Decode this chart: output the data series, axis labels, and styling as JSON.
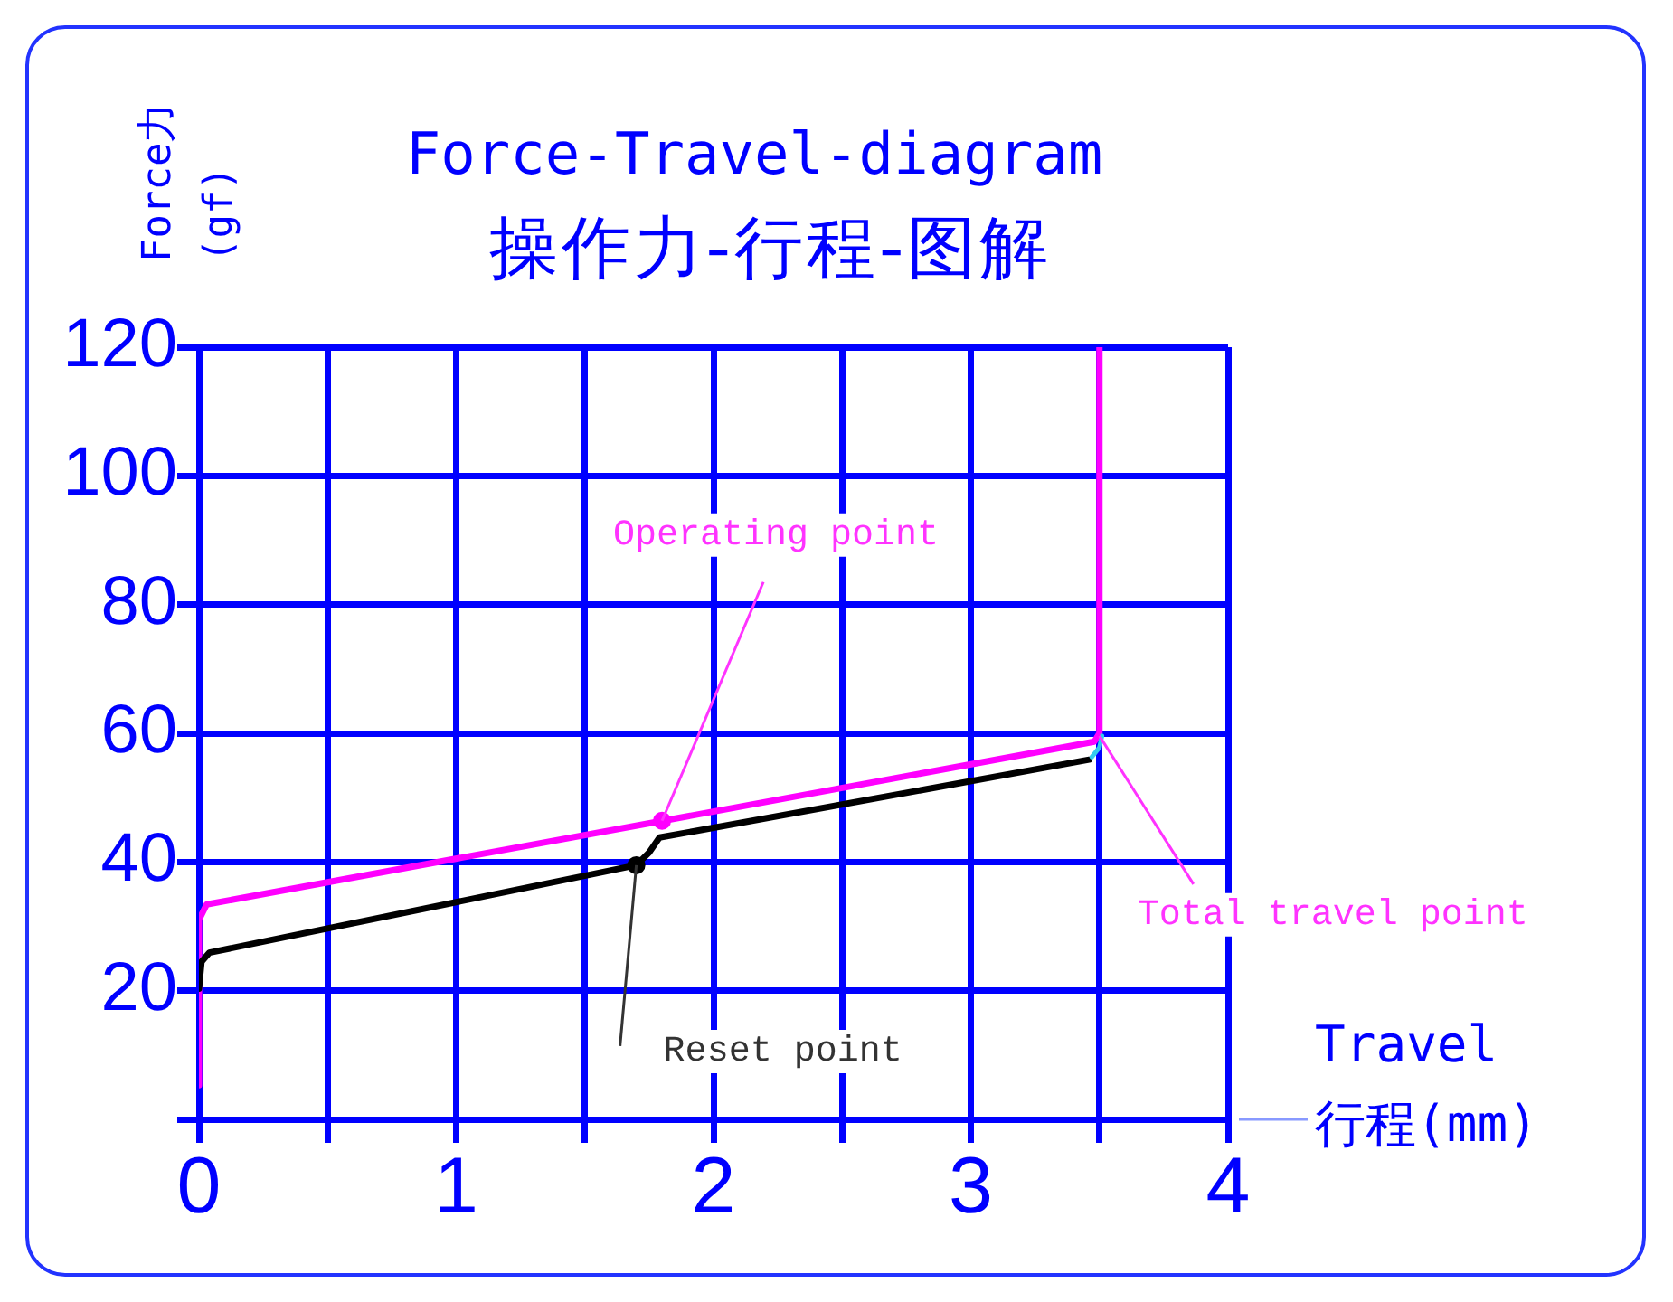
{
  "chart_data": {
    "type": "line",
    "title": "Force-Travel-diagram",
    "subtitle": "操作力-行程-图解",
    "xlabel": "Travel 行程(mm)",
    "ylabel": "Force力 (gf)",
    "xlim": [
      0,
      4
    ],
    "ylim": [
      0,
      120
    ],
    "xticks": [
      0,
      {
        "value": 0.5,
        "label": null
      },
      1,
      {
        "value": 1.5,
        "label": null
      },
      2,
      {
        "value": 2.5,
        "label": null
      },
      3,
      {
        "value": 3.5,
        "label": null
      },
      4
    ],
    "yticks": [
      {
        "value": 0,
        "label": null
      },
      20,
      40,
      60,
      80,
      100,
      120
    ],
    "grid": true,
    "line_style": "solid",
    "marker": "none",
    "series": [
      {
        "color": "#ff00ff",
        "x": [
          0,
          0,
          0.03,
          3.48,
          3.5,
          3.5
        ],
        "values": [
          5.3,
          31,
          33.4,
          58.7,
          60,
          120
        ]
      },
      {
        "color": "#000000",
        "x": [
          0,
          0.01,
          0.04,
          1.7,
          1.75,
          1.79,
          3.46
        ],
        "values": [
          20.3,
          24.5,
          25.9,
          39.5,
          41.5,
          43.8,
          55.9
        ]
      },
      {
        "color": "#33ccee",
        "x": [
          3.47,
          3.5,
          3.51
        ],
        "values": [
          56.3,
          57.8,
          59.6
        ]
      },
      {
        "type": "scatter",
        "color": "#ff00ff",
        "marker": "circle",
        "x": [
          1.8
        ],
        "values": [
          46.4
        ]
      },
      {
        "type": "scatter",
        "color": "#000000",
        "marker": "circle",
        "x": [
          1.7
        ],
        "values": [
          39.5
        ]
      }
    ],
    "annotations": [
      {
        "text": "Operating point",
        "x": 1.8,
        "y": 46.4
      },
      {
        "text": "Reset point",
        "x": 1.7,
        "y": 39.5
      },
      {
        "text": "Total travel point",
        "x": 3.5,
        "y": 59.6
      }
    ]
  }
}
